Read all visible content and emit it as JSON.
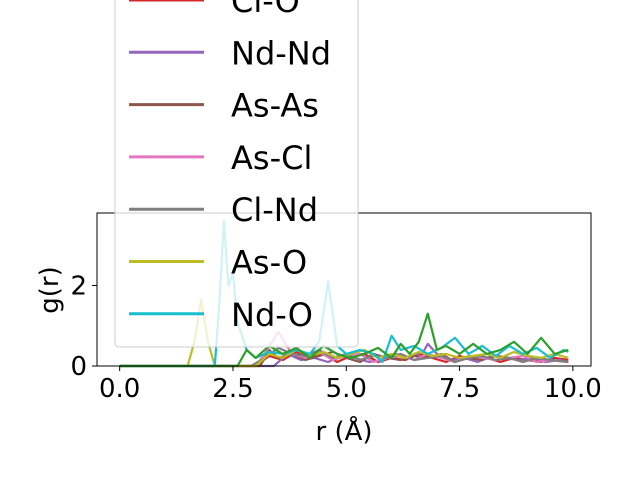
{
  "chart_data": {
    "type": "line",
    "xlabel": "r (Å)",
    "ylabel": "g(r)",
    "xlim": [
      -0.5,
      10.4
    ],
    "ylim": [
      0,
      3.8
    ],
    "xticks": [
      0.0,
      2.5,
      5.0,
      7.5,
      10.0
    ],
    "xtick_labels": [
      "0.0",
      "2.5",
      "5.0",
      "7.5",
      "10.0"
    ],
    "yticks": [
      0,
      2
    ],
    "ytick_labels": [
      "0",
      "2"
    ],
    "grid": false,
    "legend_position": "upper-left (overflowing above axes)",
    "series": [
      {
        "name": "Cl-O",
        "color": "#d62728",
        "x": [
          0,
          3.0,
          3.3,
          3.6,
          3.9,
          4.2,
          4.5,
          4.8,
          5.1,
          5.4,
          5.7,
          6.0,
          6.3,
          6.6,
          6.9,
          7.2,
          7.5,
          7.8,
          8.1,
          8.4,
          8.7,
          9.0,
          9.3,
          9.6,
          9.9
        ],
        "y": [
          0,
          0,
          0.25,
          0.15,
          0.35,
          0.2,
          0.3,
          0.1,
          0.25,
          0.3,
          0.1,
          0.2,
          0.15,
          0.3,
          0.2,
          0.1,
          0.25,
          0.15,
          0.2,
          0.1,
          0.2,
          0.15,
          0.1,
          0.2,
          0.15
        ]
      },
      {
        "name": "Nd-Nd",
        "color": "#9467bd",
        "x": [
          0,
          3.4,
          3.7,
          4.0,
          4.3,
          4.6,
          4.9,
          5.2,
          5.5,
          5.8,
          6.1,
          6.4,
          6.7,
          6.8,
          7.0,
          7.3,
          7.6,
          7.9,
          8.2,
          8.5,
          8.8,
          9.1,
          9.4,
          9.7,
          9.9
        ],
        "y": [
          0,
          0,
          0.3,
          0.15,
          0.2,
          0.1,
          0.25,
          0.2,
          0.1,
          0.15,
          0.3,
          0.2,
          0.35,
          0.55,
          0.3,
          0.15,
          0.2,
          0.1,
          0.25,
          0.2,
          0.15,
          0.2,
          0.1,
          0.15,
          0.1
        ]
      },
      {
        "name": "As-As",
        "color": "#8c564b",
        "x": [
          0,
          3.1,
          3.3,
          3.5,
          3.8,
          4.1,
          4.4,
          4.7,
          5.0,
          5.3,
          5.6,
          5.9,
          6.2,
          6.5,
          6.8,
          7.1,
          7.4,
          7.7,
          8.0,
          8.3,
          8.6,
          8.9,
          9.2,
          9.5,
          9.9
        ],
        "y": [
          0,
          0,
          0.4,
          0.2,
          0.3,
          0.15,
          0.25,
          0.35,
          0.2,
          0.1,
          0.3,
          0.2,
          0.15,
          0.25,
          0.2,
          0.3,
          0.1,
          0.2,
          0.15,
          0.25,
          0.2,
          0.1,
          0.2,
          0.15,
          0.1
        ]
      },
      {
        "name": "As-Cl",
        "color": "#e377c2",
        "x": [
          0,
          3.0,
          3.2,
          3.5,
          3.8,
          4.1,
          4.4,
          4.7,
          5.0,
          5.3,
          5.6,
          5.9,
          6.2,
          6.5,
          6.8,
          7.1,
          7.4,
          7.7,
          8.0,
          8.3,
          8.6,
          8.9,
          9.2,
          9.5,
          9.9
        ],
        "y": [
          0,
          0,
          0.3,
          0.85,
          0.3,
          0.2,
          0.35,
          0.15,
          0.25,
          0.3,
          0.1,
          0.2,
          0.25,
          0.15,
          0.3,
          0.2,
          0.1,
          0.25,
          0.2,
          0.15,
          0.2,
          0.25,
          0.1,
          0.15,
          0.1
        ]
      },
      {
        "name": "Cl-Nd",
        "color": "#7f7f7f",
        "x": [
          0,
          2.9,
          3.2,
          3.5,
          3.8,
          4.1,
          4.4,
          4.7,
          5.0,
          5.3,
          5.6,
          5.9,
          6.2,
          6.5,
          6.8,
          7.1,
          7.4,
          7.7,
          8.0,
          8.3,
          8.6,
          8.9,
          9.2,
          9.5,
          9.9
        ],
        "y": [
          0,
          0,
          0.2,
          0.45,
          0.3,
          0.25,
          0.4,
          0.2,
          0.3,
          0.15,
          0.25,
          0.2,
          0.3,
          0.15,
          0.2,
          0.25,
          0.1,
          0.2,
          0.25,
          0.15,
          0.2,
          0.1,
          0.2,
          0.15,
          0.1
        ]
      },
      {
        "name": "As-O",
        "color": "#bcbd22",
        "x": [
          0,
          1.5,
          1.65,
          1.8,
          1.95,
          2.1,
          3.0,
          3.3,
          3.6,
          3.9,
          4.2,
          4.5,
          4.8,
          5.1,
          5.4,
          5.7,
          6.0,
          6.3,
          6.6,
          6.9,
          7.2,
          7.5,
          7.8,
          8.1,
          8.4,
          8.7,
          9.0,
          9.3,
          9.6,
          9.9
        ],
        "y": [
          0,
          0,
          0.6,
          1.65,
          0.6,
          0,
          0,
          0.3,
          0.2,
          0.4,
          0.25,
          0.35,
          0.2,
          0.3,
          0.4,
          0.2,
          0.3,
          0.2,
          0.35,
          0.25,
          0.3,
          0.2,
          0.25,
          0.3,
          0.2,
          0.35,
          0.25,
          0.2,
          0.3,
          0.2
        ]
      },
      {
        "name": "Nd-O",
        "color": "#17becf",
        "x": [
          0,
          2.1,
          2.2,
          2.3,
          2.4,
          2.5,
          2.6,
          2.8,
          3.0,
          3.3,
          3.6,
          3.9,
          4.2,
          4.4,
          4.6,
          4.8,
          5.0,
          5.3,
          5.6,
          5.8,
          6.0,
          6.2,
          6.5,
          6.8,
          7.1,
          7.4,
          7.7,
          8.0,
          8.3,
          8.6,
          8.9,
          9.2,
          9.5,
          9.8,
          9.9
        ],
        "y": [
          0,
          0,
          1.6,
          3.6,
          2.0,
          2.3,
          1.1,
          0.4,
          0.2,
          0.35,
          0.3,
          0.4,
          0.3,
          0.6,
          2.1,
          0.5,
          0.3,
          0.4,
          0.3,
          0.1,
          0.75,
          0.4,
          0.5,
          0.3,
          0.45,
          0.7,
          0.3,
          0.5,
          0.25,
          0.5,
          0.3,
          0.45,
          0.2,
          0.4,
          0.35
        ]
      },
      {
        "name": "",
        "color": "#2ca02c",
        "x": [
          0,
          2.6,
          2.8,
          3.0,
          3.3,
          3.6,
          3.9,
          4.2,
          4.5,
          4.8,
          5.1,
          5.4,
          5.7,
          6.0,
          6.2,
          6.4,
          6.6,
          6.8,
          7.0,
          7.2,
          7.5,
          7.8,
          8.1,
          8.4,
          8.7,
          9.0,
          9.3,
          9.6,
          9.9
        ],
        "y": [
          0,
          0,
          0.4,
          0.2,
          0.5,
          0.3,
          0.45,
          0.2,
          0.5,
          0.3,
          0.2,
          0.3,
          0.45,
          0.2,
          0.55,
          0.3,
          0.6,
          1.3,
          0.4,
          0.5,
          0.3,
          0.55,
          0.3,
          0.4,
          0.6,
          0.3,
          0.7,
          0.3,
          0.4
        ]
      }
    ]
  }
}
